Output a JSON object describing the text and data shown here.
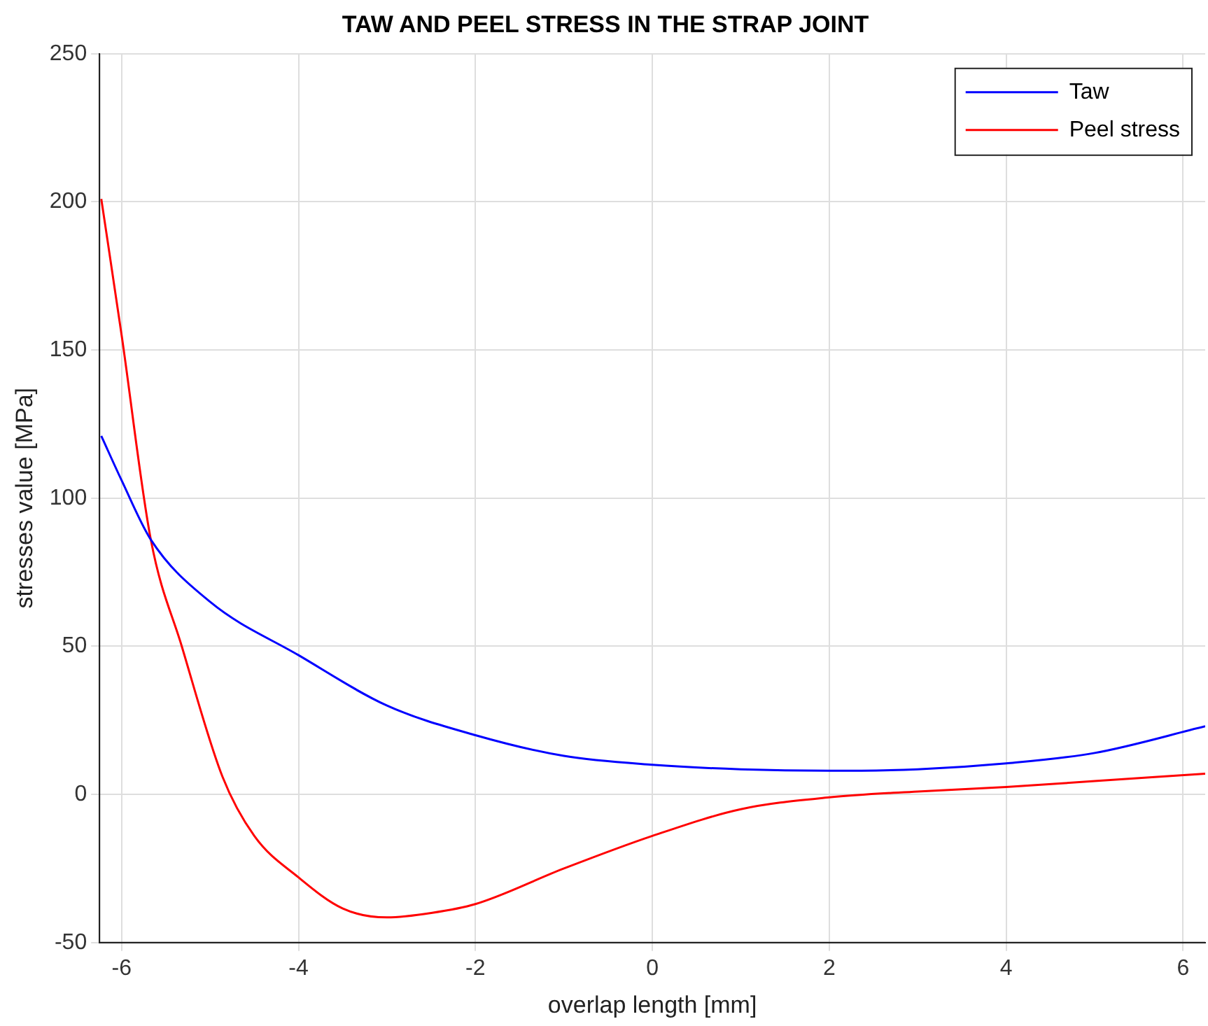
{
  "chart_data": {
    "type": "line",
    "title": "TAW AND PEEL STRESS IN THE STRAP JOINT",
    "xlabel": "overlap length [mm]",
    "ylabel": "stresses value [MPa]",
    "series": [
      {
        "name": "Taw",
        "color": "#0000ff",
        "x": [
          -6.23,
          -6,
          -5.67,
          -5,
          -4,
          -3,
          -2,
          -1,
          0,
          1,
          2,
          3,
          4,
          5,
          6.25
        ],
        "values": [
          121,
          106,
          86,
          65,
          47,
          30,
          20,
          13,
          10,
          8.5,
          8,
          8.5,
          10.5,
          14,
          23
        ]
      },
      {
        "name": "Peel stress",
        "color": "#ff0000",
        "x": [
          -6.23,
          -6,
          -5.67,
          -5.32,
          -4.86,
          -4.5,
          -4,
          -3.5,
          -3,
          -2.5,
          -2,
          -1,
          0,
          1,
          2,
          3,
          4,
          5,
          6.25
        ],
        "values": [
          201,
          155,
          86,
          50,
          6,
          -14,
          -28,
          -38.5,
          -41.5,
          -40,
          -37,
          -25,
          -14,
          -5,
          -1,
          1,
          2.5,
          4.5,
          7
        ]
      }
    ],
    "xlim": [
      -6.25,
      6.25
    ],
    "xticks": [
      -6,
      -4,
      -2,
      0,
      2,
      4,
      6
    ],
    "ylim": [
      -50,
      250
    ],
    "yticks": [
      -50,
      0,
      50,
      100,
      150,
      200,
      250
    ],
    "grid": true,
    "legend": "top right",
    "marker": "none",
    "line_style": "solid"
  }
}
